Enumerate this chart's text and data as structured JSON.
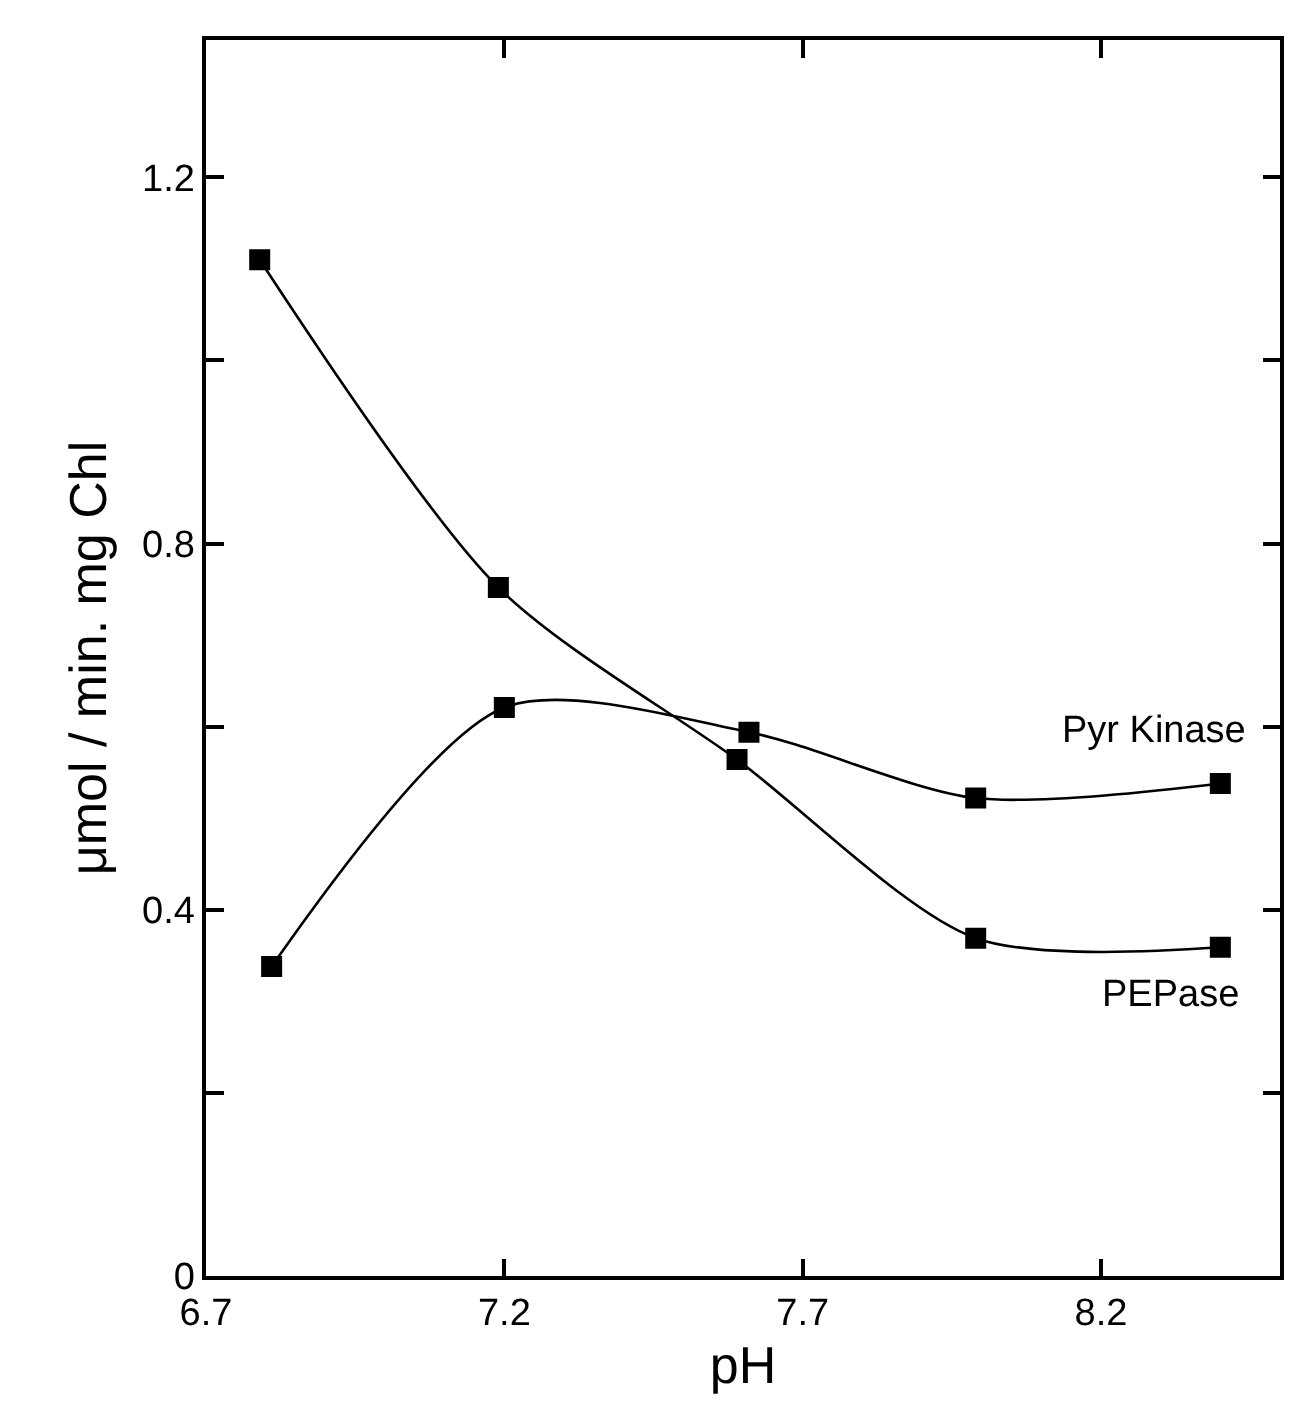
{
  "chart_data": {
    "type": "line",
    "xlabel": "pH",
    "ylabel": "μmol / min. mg Chl",
    "xlim": [
      6.7,
      8.5
    ],
    "xticks": [
      6.7,
      7.2,
      7.7,
      8.2
    ],
    "ylim": [
      0,
      1.35
    ],
    "yticks": [
      0,
      {
        "value": 0.2,
        "label": null
      },
      0.4,
      {
        "value": 0.6,
        "label": null
      },
      0.8,
      {
        "value": 1.0,
        "label": null
      },
      1.2
    ],
    "legend": "right",
    "marker": "square",
    "line_style": "solid",
    "series": [
      {
        "name": "Pyr Kinase",
        "color": "#000000",
        "x": [
          6.81,
          7.2,
          7.61,
          7.99,
          8.4
        ],
        "values": [
          0.338,
          0.621,
          0.594,
          0.522,
          0.538
        ]
      },
      {
        "name": "PEPase",
        "color": "#000000",
        "x": [
          6.79,
          7.19,
          7.59,
          7.99,
          8.4
        ],
        "values": [
          1.11,
          0.752,
          0.564,
          0.369,
          0.359
        ]
      }
    ]
  }
}
